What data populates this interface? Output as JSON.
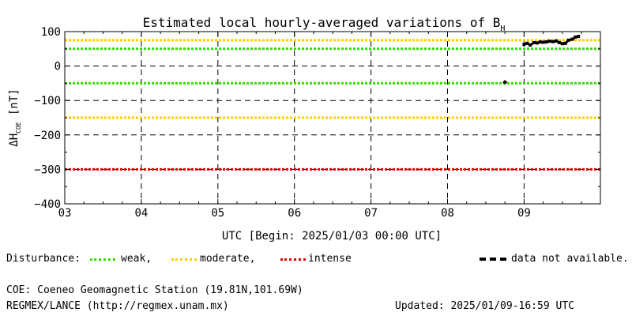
{
  "chart_data": {
    "type": "line",
    "title_main": "Estimated local hourly-averaged variations of B",
    "title_sub": "H",
    "ylabel_prefix": "ΔH",
    "ylabel_sub": "COE",
    "ylabel_suffix": " [nT]",
    "xlabel": "UTC [Begin: 2025/01/03 00:00 UTC]",
    "ylim": [
      -400,
      100
    ],
    "y_ticks": [
      100,
      0,
      -100,
      -200,
      -300,
      -400
    ],
    "y_tick_labels": [
      "100",
      "0",
      "−100",
      "−200",
      "−300",
      "−400"
    ],
    "xlim_days": [
      0,
      7
    ],
    "x_tick_labels": [
      "03",
      "04",
      "05",
      "06",
      "07",
      "08",
      "09"
    ],
    "grid": true,
    "thresholds": [
      {
        "name": "weak",
        "values": [
          50,
          -50
        ],
        "color": "#33dd00"
      },
      {
        "name": "moderate",
        "values": [
          75,
          -150
        ],
        "color": "#ffcc00"
      },
      {
        "name": "intense",
        "values": [
          -300
        ],
        "color": "#dd0000"
      }
    ],
    "series": [
      {
        "x_days": [
          5.75,
          6.0,
          6.04,
          6.08,
          6.13,
          6.17,
          6.21,
          6.25,
          6.29,
          6.33,
          6.38,
          6.42,
          6.46,
          6.5,
          6.54,
          6.58,
          6.63,
          6.67,
          6.71
        ],
        "values": [
          -47,
          63,
          66,
          61,
          68,
          67,
          70,
          69,
          70,
          72,
          71,
          73,
          68,
          65,
          66,
          75,
          78,
          84,
          86
        ],
        "color": "#000000"
      }
    ]
  },
  "legend": {
    "disturbance_label": "Disturbance:",
    "weak_label": "weak,",
    "moderate_label": "moderate,",
    "intense_label": "intense",
    "na_label": "data not available."
  },
  "footer": {
    "station": "COE: Coeneo Geomagnetic Station (19.81N,101.69W)",
    "network": "REGMEX/LANCE (http://regmex.unam.mx)",
    "updated": "Updated: 2025/01/09-16:59 UTC"
  }
}
